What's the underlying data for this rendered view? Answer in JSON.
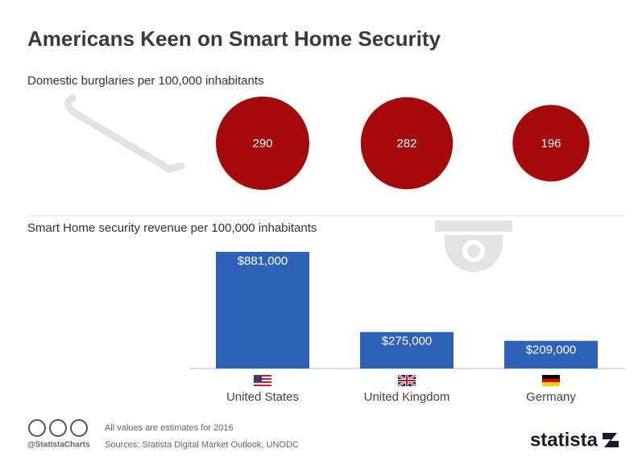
{
  "title": "Americans Keen on Smart Home Security",
  "chart_data": [
    {
      "type": "bubble",
      "subtitle": "Domestic burglaries per 100,000 inhabitants",
      "values": [
        290,
        282,
        196
      ],
      "color": "#a50a0a"
    },
    {
      "type": "bar",
      "subtitle": "Smart Home security revenue per 100,000 inhabitants",
      "categories": [
        "United States",
        "United Kingdom",
        "Germany"
      ],
      "values": [
        881000,
        275000,
        209000
      ],
      "value_labels": [
        "$881,000",
        "$275,000",
        "$209,000"
      ],
      "color": "#2e62b8"
    }
  ],
  "footer": {
    "note": "All values are estimates for 2016",
    "sources": "Sources: Statista Digital Market Outlook, UNODC",
    "handle": "@StatistaCharts",
    "brand": "statista"
  }
}
